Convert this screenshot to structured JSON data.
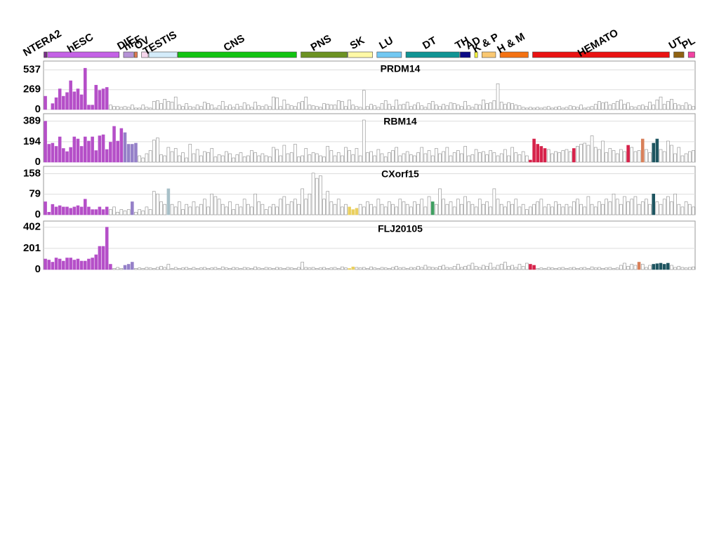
{
  "chart_data": [
    {
      "type": "bar",
      "title": "PRDM14",
      "ylim": [
        0,
        600
      ],
      "yticks": [
        0,
        269,
        537
      ],
      "grid": true,
      "color": "#ffffff",
      "highlights": [
        {
          "start": 0,
          "end": 17,
          "color": "#b54fc8"
        }
      ],
      "values": [
        180,
        0,
        80,
        160,
        280,
        180,
        230,
        390,
        240,
        280,
        200,
        560,
        60,
        60,
        330,
        260,
        280,
        300,
        60,
        40,
        40,
        30,
        40,
        30,
        60,
        20,
        20,
        60,
        30,
        20,
        110,
        120,
        80,
        140,
        110,
        100,
        170,
        60,
        40,
        80,
        40,
        30,
        60,
        40,
        100,
        80,
        60,
        20,
        50,
        110,
        40,
        60,
        30,
        70,
        40,
        90,
        60,
        30,
        100,
        50,
        40,
        60,
        40,
        170,
        160,
        40,
        130,
        70,
        50,
        40,
        90,
        110,
        170,
        60,
        50,
        40,
        30,
        80,
        70,
        60,
        60,
        120,
        110,
        40,
        130,
        60,
        40,
        30,
        260,
        40,
        70,
        50,
        30,
        80,
        120,
        70,
        40,
        130,
        60,
        70,
        100,
        40,
        60,
        90,
        50,
        30,
        80,
        110,
        60,
        40,
        70,
        50,
        90,
        80,
        60,
        40,
        110,
        50,
        30,
        70,
        60,
        130,
        80,
        90,
        120,
        350,
        100,
        70,
        90,
        80,
        60,
        50,
        30,
        20,
        30,
        20,
        30,
        20,
        30,
        40,
        20,
        30,
        40,
        20,
        30,
        50,
        40,
        30,
        60,
        20,
        30,
        40,
        70,
        110,
        90,
        100,
        60,
        80,
        110,
        130,
        70,
        90,
        40,
        30,
        50,
        60,
        40,
        100,
        60,
        130,
        170,
        70,
        110,
        140,
        80,
        60,
        50,
        90,
        60,
        40
      ]
    },
    {
      "type": "bar",
      "title": "RBM14",
      "ylim": [
        0,
        420
      ],
      "yticks": [
        0,
        194,
        389
      ],
      "grid": true,
      "color": "#ffffff",
      "highlights": [
        {
          "start": 0,
          "end": 21,
          "color": "#b54fc8"
        },
        {
          "start": 22,
          "end": 25,
          "color": "#9580c8"
        },
        {
          "start": 134,
          "end": 138,
          "color": "#d6224a"
        },
        {
          "start": 146,
          "end": 146,
          "color": "#d6224a"
        },
        {
          "start": 161,
          "end": 161,
          "color": "#d6224a"
        },
        {
          "start": 165,
          "end": 165,
          "color": "#d8805a"
        },
        {
          "start": 168,
          "end": 169,
          "color": "#1e5560"
        }
      ],
      "values": [
        389,
        170,
        180,
        150,
        240,
        130,
        100,
        140,
        240,
        220,
        150,
        240,
        200,
        240,
        110,
        250,
        260,
        120,
        190,
        340,
        200,
        320,
        280,
        170,
        170,
        180,
        60,
        40,
        80,
        110,
        210,
        230,
        70,
        60,
        140,
        100,
        130,
        60,
        90,
        40,
        170,
        80,
        120,
        60,
        100,
        90,
        130,
        50,
        70,
        60,
        100,
        80,
        40,
        70,
        90,
        50,
        60,
        110,
        90,
        60,
        80,
        60,
        50,
        140,
        120,
        60,
        160,
        80,
        90,
        170,
        50,
        60,
        130,
        70,
        90,
        80,
        60,
        50,
        150,
        110,
        60,
        90,
        60,
        140,
        110,
        70,
        130,
        60,
        400,
        90,
        100,
        60,
        120,
        80,
        50,
        90,
        110,
        140,
        60,
        80,
        100,
        70,
        60,
        90,
        140,
        80,
        110,
        60,
        130,
        80,
        100,
        140,
        60,
        90,
        110,
        80,
        150,
        60,
        70,
        120,
        90,
        100,
        70,
        110,
        90,
        60,
        80,
        120,
        60,
        140,
        90,
        70,
        100,
        60,
        20,
        220,
        170,
        150,
        130,
        120,
        80,
        100,
        90,
        110,
        120,
        100,
        130,
        150,
        170,
        180,
        160,
        250,
        140,
        120,
        200,
        90,
        130,
        110,
        80,
        120,
        100,
        160,
        140,
        100,
        110,
        220,
        120,
        90,
        180,
        220,
        120,
        100,
        200,
        160,
        80,
        140,
        60,
        80,
        100,
        110
      ]
    },
    {
      "type": "bar",
      "title": "CXorf15",
      "ylim": [
        0,
        170
      ],
      "yticks": [
        0,
        79,
        158
      ],
      "grid": true,
      "color": "#ffffff",
      "highlights": [
        {
          "start": 0,
          "end": 17,
          "color": "#b54fc8"
        },
        {
          "start": 24,
          "end": 24,
          "color": "#9580c8"
        },
        {
          "start": 34,
          "end": 34,
          "color": "#a8c0c8"
        },
        {
          "start": 84,
          "end": 86,
          "color": "#ead060"
        },
        {
          "start": 107,
          "end": 107,
          "color": "#3f9f60"
        },
        {
          "start": 168,
          "end": 168,
          "color": "#1e5560"
        }
      ],
      "values": [
        50,
        10,
        40,
        30,
        35,
        30,
        30,
        25,
        30,
        35,
        30,
        60,
        30,
        20,
        20,
        30,
        20,
        30,
        20,
        30,
        10,
        20,
        15,
        20,
        50,
        10,
        20,
        15,
        30,
        20,
        90,
        80,
        50,
        40,
        100,
        40,
        30,
        50,
        20,
        40,
        30,
        50,
        30,
        40,
        60,
        30,
        80,
        70,
        60,
        40,
        30,
        50,
        20,
        40,
        30,
        60,
        40,
        30,
        80,
        50,
        40,
        20,
        30,
        40,
        30,
        60,
        70,
        40,
        50,
        60,
        40,
        100,
        60,
        80,
        160,
        140,
        150,
        60,
        90,
        50,
        40,
        60,
        30,
        40,
        30,
        20,
        25,
        40,
        30,
        50,
        40,
        30,
        60,
        40,
        30,
        50,
        40,
        30,
        60,
        50,
        40,
        30,
        50,
        40,
        60,
        30,
        70,
        50,
        40,
        100,
        60,
        40,
        50,
        30,
        60,
        40,
        70,
        50,
        40,
        30,
        60,
        40,
        50,
        30,
        100,
        60,
        40,
        30,
        50,
        40,
        60,
        30,
        40,
        20,
        30,
        40,
        50,
        60,
        30,
        40,
        30,
        50,
        40,
        30,
        40,
        30,
        50,
        60,
        40,
        30,
        70,
        40,
        30,
        50,
        40,
        60,
        50,
        80,
        60,
        40,
        70,
        50,
        60,
        70,
        40,
        50,
        60,
        40,
        80,
        50,
        40,
        60,
        70,
        50,
        80,
        40,
        30,
        50,
        40,
        30
      ]
    },
    {
      "type": "bar",
      "title": "FLJ20105",
      "ylim": [
        0,
        420
      ],
      "yticks": [
        0,
        201,
        402
      ],
      "grid": true,
      "color": "#ffffff",
      "highlights": [
        {
          "start": 0,
          "end": 18,
          "color": "#b54fc8"
        },
        {
          "start": 22,
          "end": 24,
          "color": "#9580c8"
        },
        {
          "start": 84,
          "end": 85,
          "color": "#ead060"
        },
        {
          "start": 134,
          "end": 135,
          "color": "#d6224a"
        },
        {
          "start": 164,
          "end": 164,
          "color": "#d8805a"
        },
        {
          "start": 168,
          "end": 172,
          "color": "#1e5560"
        }
      ],
      "values": [
        100,
        90,
        70,
        110,
        100,
        80,
        110,
        110,
        90,
        100,
        80,
        80,
        100,
        110,
        140,
        220,
        220,
        402,
        50,
        10,
        20,
        10,
        40,
        50,
        70,
        10,
        15,
        10,
        20,
        15,
        10,
        20,
        30,
        20,
        50,
        10,
        20,
        10,
        15,
        20,
        10,
        20,
        10,
        15,
        20,
        10,
        15,
        20,
        10,
        25,
        15,
        10,
        20,
        15,
        10,
        20,
        15,
        10,
        25,
        15,
        10,
        20,
        15,
        10,
        20,
        15,
        10,
        20,
        15,
        10,
        20,
        70,
        20,
        15,
        20,
        10,
        15,
        20,
        10,
        15,
        20,
        10,
        25,
        15,
        10,
        25,
        20,
        15,
        20,
        10,
        25,
        15,
        10,
        20,
        15,
        10,
        20,
        30,
        15,
        20,
        10,
        20,
        15,
        30,
        20,
        40,
        25,
        20,
        15,
        30,
        40,
        20,
        15,
        30,
        50,
        20,
        30,
        40,
        60,
        30,
        20,
        40,
        30,
        60,
        20,
        40,
        50,
        70,
        30,
        40,
        20,
        50,
        30,
        60,
        50,
        40,
        10,
        15,
        10,
        20,
        15,
        10,
        15,
        20,
        10,
        15,
        20,
        10,
        15,
        20,
        10,
        25,
        15,
        20,
        10,
        15,
        20,
        10,
        15,
        40,
        60,
        30,
        50,
        40,
        70,
        50,
        20,
        40,
        50,
        55,
        60,
        50,
        60,
        40,
        20,
        30,
        20,
        15,
        20,
        25
      ]
    }
  ],
  "groups": [
    {
      "name": "NTERA2",
      "color": "#7a2e8a",
      "start": 0,
      "end": 0
    },
    {
      "name": "hESC",
      "color": "#c462e6",
      "start": 1,
      "end": 20
    },
    {
      "name": "DIF",
      "color": "#b592d6",
      "start": 22,
      "end": 24
    },
    {
      "name": "hFF",
      "color": "#e07a50",
      "start": 25,
      "end": 25
    },
    {
      "name": "OV",
      "color": "#f6d6ec",
      "start": 27,
      "end": 28
    },
    {
      "name": "TESTIS",
      "color": "#d4ecfa",
      "start": 29,
      "end": 36
    },
    {
      "name": "CNS",
      "color": "#12c412",
      "start": 37,
      "end": 69
    },
    {
      "name": "PNS",
      "color": "#6c9222",
      "start": 71,
      "end": 83
    },
    {
      "name": "SK",
      "color": "#fff9a6",
      "start": 84,
      "end": 90
    },
    {
      "name": "LU",
      "color": "#72c8f2",
      "start": 92,
      "end": 98
    },
    {
      "name": "DT",
      "color": "#109494",
      "start": 100,
      "end": 114
    },
    {
      "name": "TH",
      "color": "#0a0a86",
      "start": 115,
      "end": 117
    },
    {
      "name": "AD",
      "color": "#f4f23c",
      "start": 119,
      "end": 119
    },
    {
      "name": "K & P",
      "color": "#fac872",
      "start": 121,
      "end": 124
    },
    {
      "name": "H & M",
      "color": "#f47212",
      "start": 126,
      "end": 133
    },
    {
      "name": "HEMATO",
      "color": "#ea1212",
      "start": 135,
      "end": 172
    },
    {
      "name": "UT",
      "color": "#906212",
      "start": 174,
      "end": 176
    },
    {
      "name": "PL",
      "color": "#f242a2",
      "start": 178,
      "end": 179
    }
  ]
}
